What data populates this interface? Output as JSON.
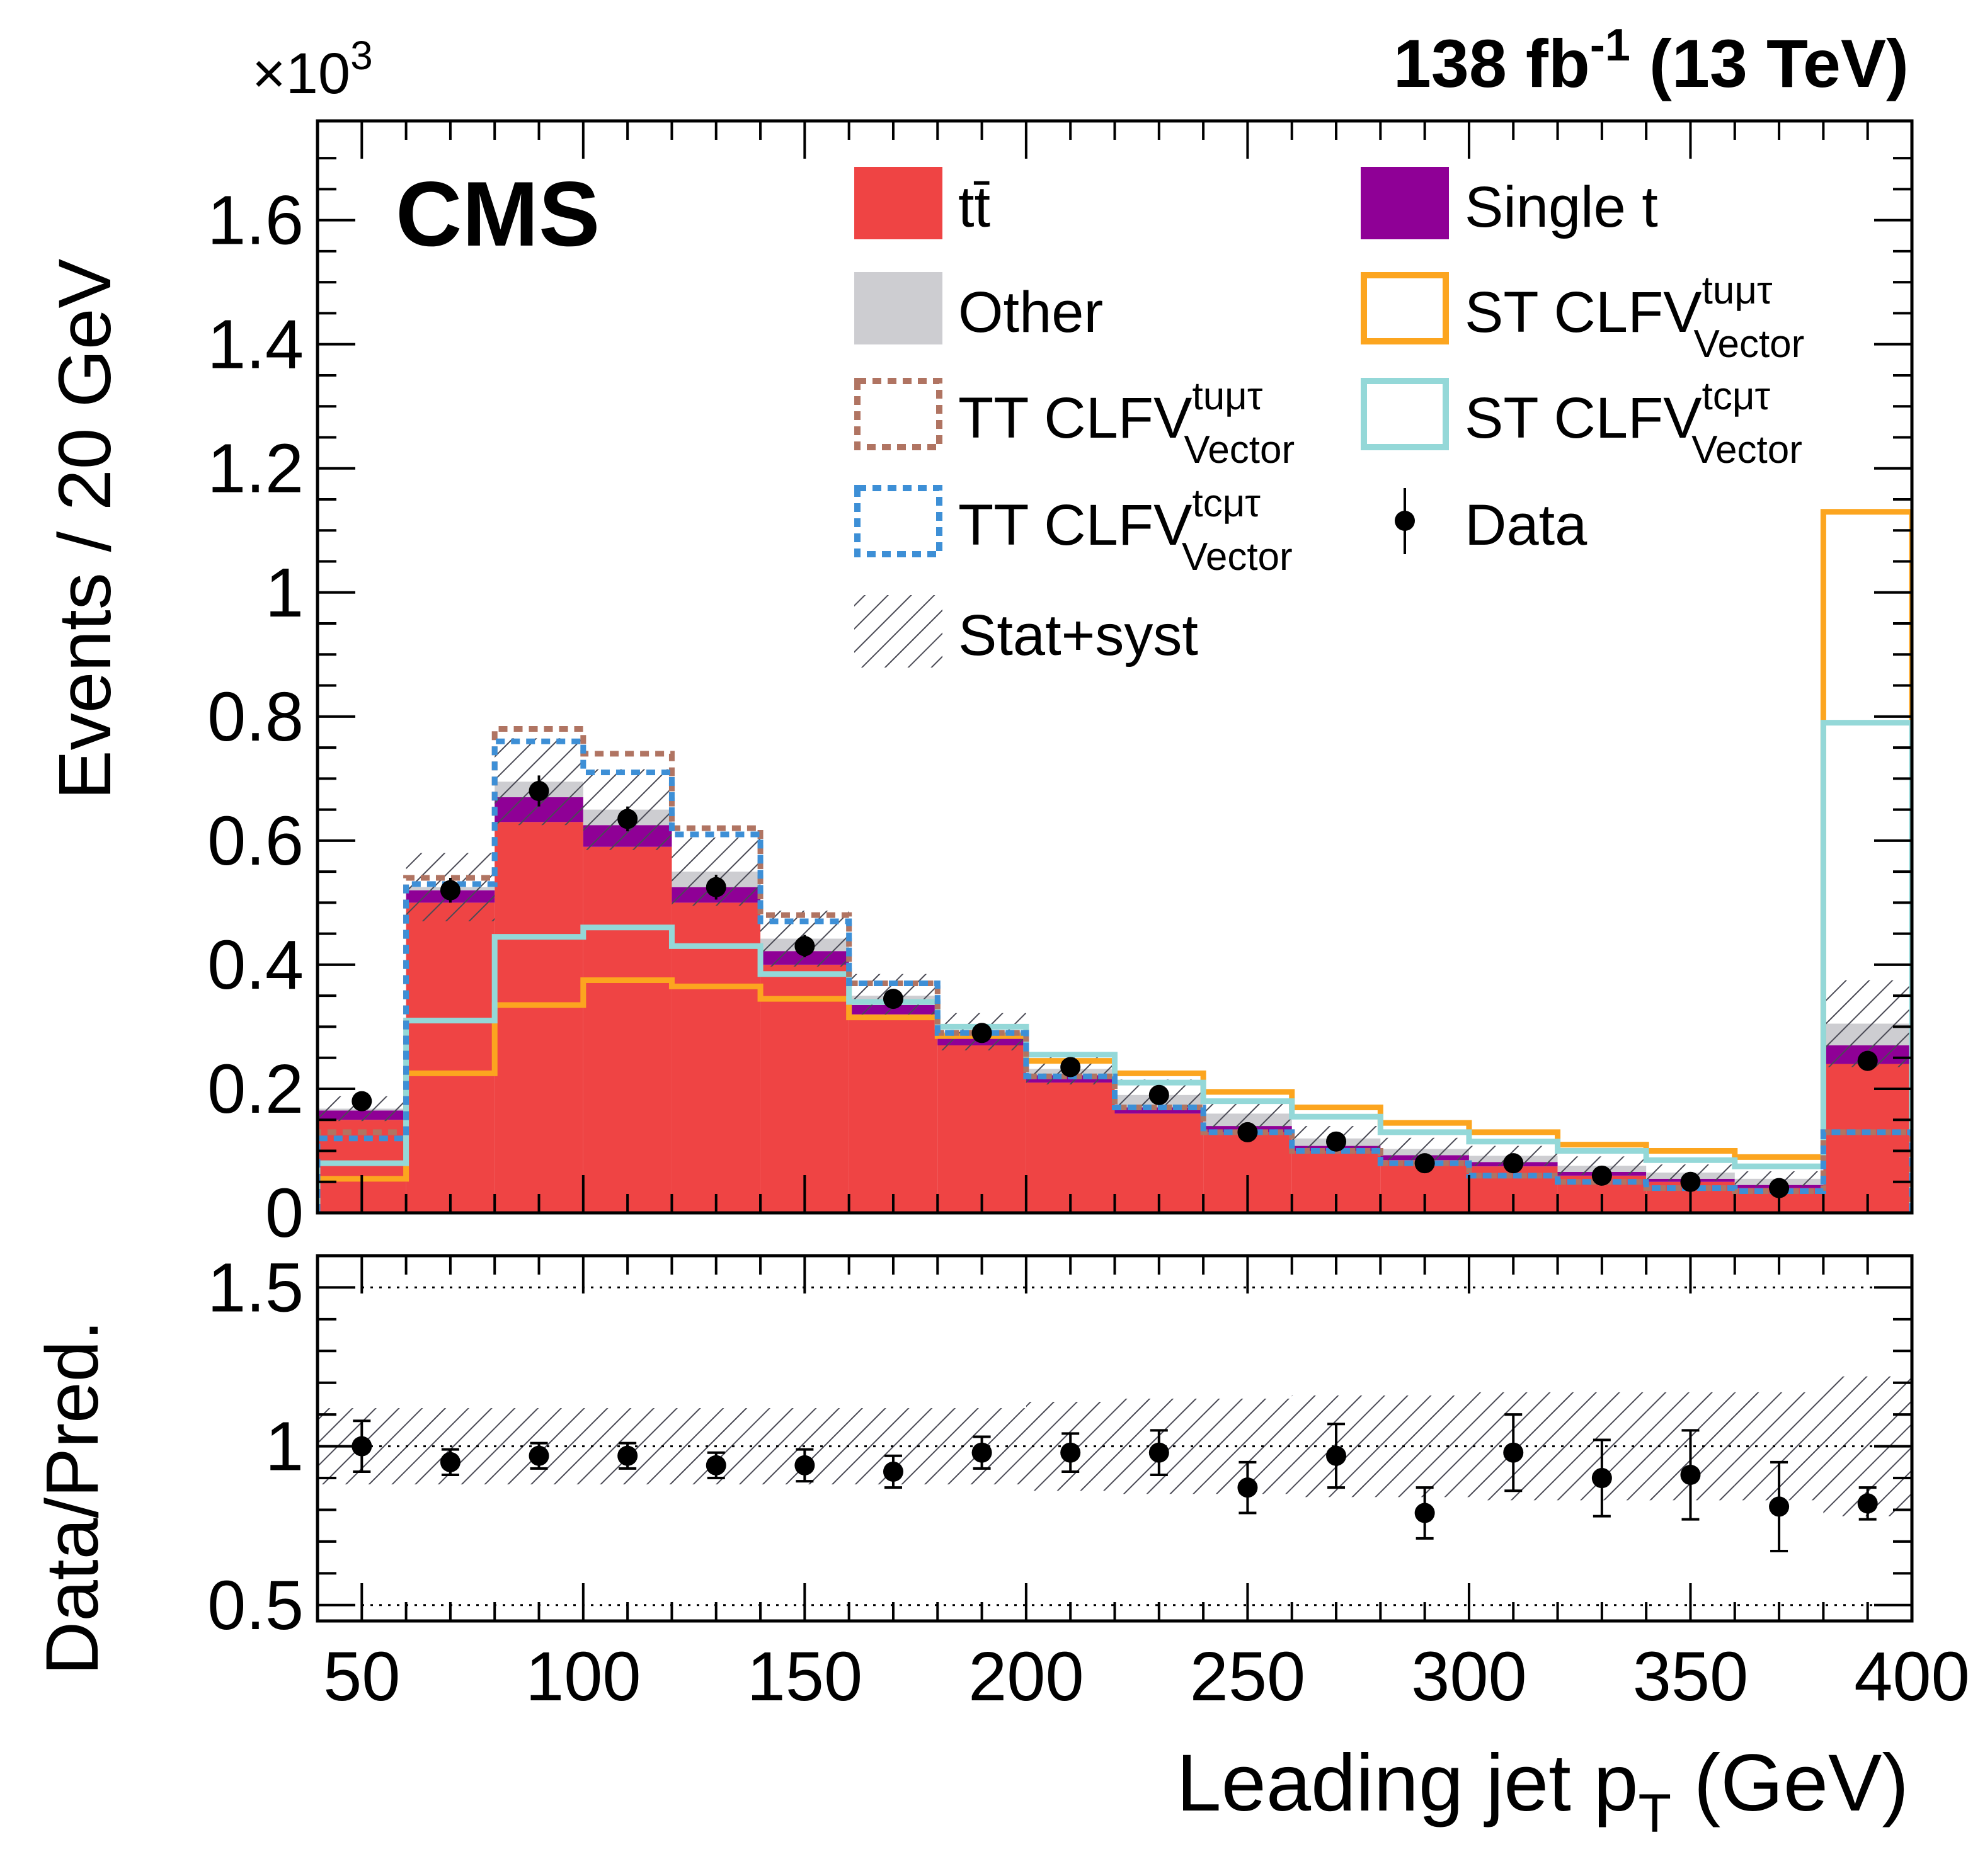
{
  "header": {
    "lumi": "138 fb",
    "lumi_exp": "-1",
    "energy": " (13 TeV)",
    "cms_label": "CMS",
    "y_multiplier": "×10",
    "y_multiplier_exp": "3"
  },
  "colors": {
    "ttbar": "#ef4444",
    "single_t": "#8f0096",
    "other": "#cdcdd1",
    "st_tumutau": "#fca51f",
    "st_tcmutau": "#94d8d8",
    "tt_tumutau": "#b07462",
    "tt_tcmutau": "#3d8fd6",
    "data": "#000000"
  },
  "legend": [
    {
      "key": "ttbar",
      "label": "tt̄",
      "style": "fill",
      "color": "#ef4444"
    },
    {
      "key": "single_t",
      "label": "Single t",
      "style": "fill",
      "color": "#8f0096"
    },
    {
      "key": "other",
      "label": "Other",
      "style": "fill",
      "color": "#cdcdd1"
    },
    {
      "key": "st_tumutau",
      "label": "ST CLFV",
      "sup": "tuμτ",
      "sub": "Vector",
      "style": "line",
      "color": "#fca51f"
    },
    {
      "key": "tt_tumutau",
      "label": "TT CLFV",
      "sup": "tuμτ",
      "sub": "Vector",
      "style": "dotted",
      "color": "#b07462"
    },
    {
      "key": "st_tcmutau",
      "label": "ST CLFV",
      "sup": "tcμτ",
      "sub": "Vector",
      "style": "line",
      "color": "#94d8d8"
    },
    {
      "key": "tt_tcmutau",
      "label": "TT CLFV",
      "sup": "tcμτ",
      "sub": "Vector",
      "style": "dotted",
      "color": "#3d8fd6"
    },
    {
      "key": "data",
      "label": "Data",
      "style": "marker",
      "color": "#000000"
    },
    {
      "key": "unc",
      "label": "Stat+syst",
      "style": "hatch",
      "color": "#555555"
    }
  ],
  "chart_data": {
    "type": "histogram",
    "x_label": "Leading jet p",
    "x_label_sub": "T",
    "x_label_unit": " (GeV)",
    "y_label": "Events / 20 GeV",
    "ratio_y_label": "Data/Pred.",
    "x_ticks": [
      "50",
      "100",
      "150",
      "200",
      "250",
      "300",
      "350",
      "400"
    ],
    "y_ticks": [
      "0",
      "0.2",
      "0.4",
      "0.6",
      "0.8",
      "1",
      "1.2",
      "1.4",
      "1.6"
    ],
    "ratio_ticks": [
      "0.5",
      "1",
      "1.5"
    ],
    "xlim": [
      40,
      400
    ],
    "ylim": [
      0,
      1.76
    ],
    "ratio_ylim": [
      0.45,
      1.6
    ],
    "bin_edges": [
      40,
      60,
      80,
      100,
      120,
      140,
      160,
      180,
      200,
      220,
      240,
      260,
      280,
      300,
      320,
      340,
      360,
      380,
      400
    ],
    "stack": [
      {
        "name": "ttbar",
        "values": [
          0.15,
          0.5,
          0.63,
          0.59,
          0.5,
          0.4,
          0.32,
          0.27,
          0.21,
          0.16,
          0.13,
          0.1,
          0.085,
          0.075,
          0.06,
          0.05,
          0.04,
          0.24
        ]
      },
      {
        "name": "single_t",
        "values": [
          0.015,
          0.02,
          0.04,
          0.035,
          0.025,
          0.022,
          0.015,
          0.012,
          0.012,
          0.01,
          0.01,
          0.008,
          0.008,
          0.007,
          0.006,
          0.005,
          0.005,
          0.03
        ]
      },
      {
        "name": "other",
        "values": [
          0.003,
          0.005,
          0.025,
          0.025,
          0.025,
          0.02,
          0.015,
          0.01,
          0.01,
          0.02,
          0.02,
          0.012,
          0.01,
          0.01,
          0.01,
          0.01,
          0.01,
          0.035
        ]
      }
    ],
    "uncertainty": [
      0.02,
      0.055,
      0.07,
      0.065,
      0.055,
      0.045,
      0.035,
      0.03,
      0.025,
      0.025,
      0.022,
      0.02,
      0.018,
      0.016,
      0.015,
      0.013,
      0.012,
      0.07
    ],
    "signals": [
      {
        "name": "st_tumutau",
        "style": "line",
        "values": [
          0.055,
          0.225,
          0.335,
          0.375,
          0.365,
          0.345,
          0.315,
          0.285,
          0.245,
          0.225,
          0.195,
          0.17,
          0.145,
          0.13,
          0.11,
          0.1,
          0.09,
          1.13
        ]
      },
      {
        "name": "st_tcmutau",
        "style": "line",
        "values": [
          0.08,
          0.31,
          0.445,
          0.46,
          0.43,
          0.385,
          0.34,
          0.3,
          0.255,
          0.21,
          0.18,
          0.155,
          0.13,
          0.115,
          0.1,
          0.085,
          0.075,
          0.79
        ]
      },
      {
        "name": "tt_tumutau",
        "style": "dotted",
        "values": [
          0.13,
          0.54,
          0.78,
          0.74,
          0.62,
          0.48,
          0.37,
          0.29,
          0.22,
          0.17,
          0.13,
          0.1,
          0.08,
          0.06,
          0.05,
          0.04,
          0.035,
          0.13
        ]
      },
      {
        "name": "tt_tcmutau",
        "style": "dotted",
        "values": [
          0.12,
          0.53,
          0.76,
          0.71,
          0.61,
          0.47,
          0.37,
          0.29,
          0.22,
          0.17,
          0.13,
          0.1,
          0.08,
          0.06,
          0.05,
          0.04,
          0.035,
          0.13
        ]
      }
    ],
    "data": {
      "x": [
        50,
        70,
        90,
        110,
        130,
        150,
        170,
        190,
        210,
        230,
        250,
        270,
        290,
        310,
        330,
        350,
        370,
        390
      ],
      "y": [
        0.18,
        0.52,
        0.68,
        0.635,
        0.525,
        0.43,
        0.345,
        0.29,
        0.235,
        0.19,
        0.13,
        0.115,
        0.08,
        0.08,
        0.06,
        0.05,
        0.04,
        0.245
      ],
      "yerr": [
        0.01,
        0.02,
        0.025,
        0.02,
        0.02,
        0.018,
        0.015,
        0.013,
        0.012,
        0.01,
        0.009,
        0.008,
        0.007,
        0.007,
        0.006,
        0.006,
        0.005,
        0.012
      ]
    },
    "ratio": {
      "y": [
        1.0,
        0.95,
        0.97,
        0.97,
        0.94,
        0.94,
        0.92,
        0.98,
        0.98,
        0.98,
        0.87,
        0.97,
        0.79,
        0.98,
        0.9,
        0.91,
        0.81,
        0.82
      ],
      "yerr": [
        0.08,
        0.04,
        0.04,
        0.04,
        0.04,
        0.05,
        0.05,
        0.05,
        0.06,
        0.07,
        0.08,
        0.1,
        0.08,
        0.12,
        0.12,
        0.14,
        0.14,
        0.05
      ],
      "band": [
        0.12,
        0.12,
        0.12,
        0.12,
        0.12,
        0.12,
        0.12,
        0.12,
        0.14,
        0.15,
        0.15,
        0.16,
        0.16,
        0.17,
        0.17,
        0.17,
        0.17,
        0.22
      ]
    }
  }
}
